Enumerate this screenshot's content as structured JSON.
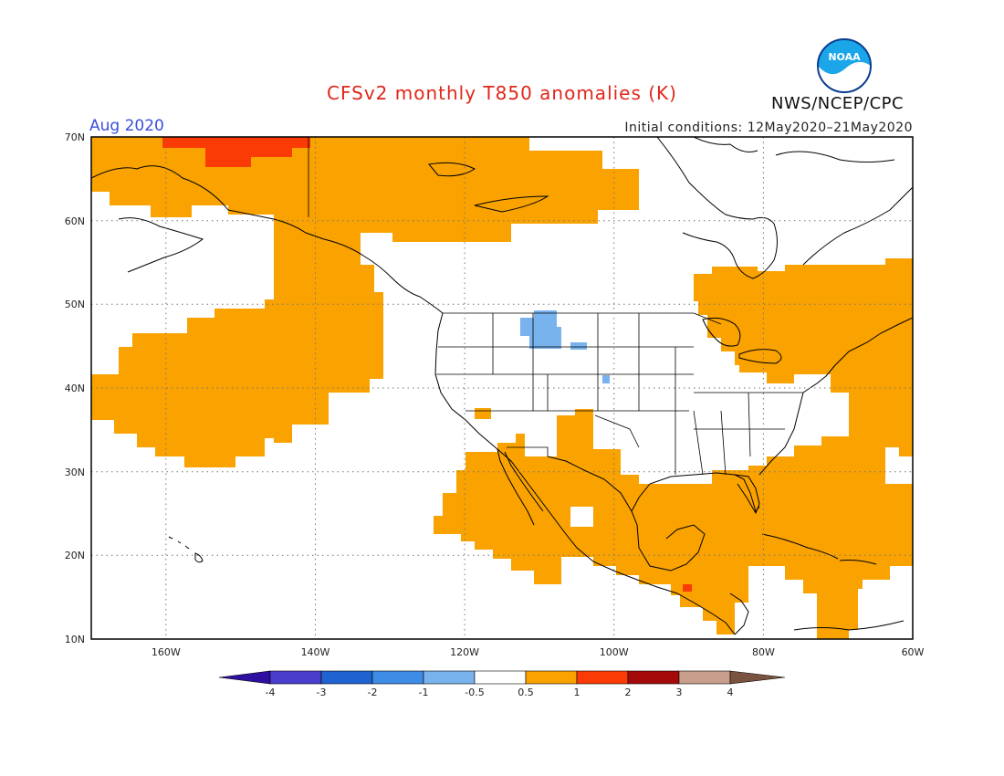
{
  "header": {
    "title": "CFSv2 monthly T850 anomalies (K)",
    "month": "Aug 2020",
    "initial_conditions": "Initial conditions: 12May2020–21May2020",
    "agency": "NWS/NCEP/CPC",
    "logo_text": "NOAA"
  },
  "map": {
    "lat_labels": [
      "70N",
      "60N",
      "50N",
      "40N",
      "30N",
      "20N",
      "10N"
    ],
    "lon_labels": [
      "160W",
      "140W",
      "120W",
      "100W",
      "80W",
      "60W"
    ],
    "colors": {
      "warm_0_5_1": "#f9a200",
      "warm_1_2": "#fb3b05",
      "cool_m1_m0_5": "#78b3ee",
      "coast": "#000000",
      "grid": "#777777"
    }
  },
  "colorbar": {
    "tick_labels": [
      "-4",
      "-3",
      "-2",
      "-1",
      "-0.5",
      "0.5",
      "1",
      "2",
      "3",
      "4"
    ],
    "colors": [
      "#2e0f9f",
      "#4b3dcc",
      "#1f63d0",
      "#3f8ce6",
      "#78b3ee",
      "#ffffff",
      "#f9a200",
      "#fb3b05",
      "#a50a0a",
      "#c79f8c",
      "#7a5340"
    ]
  }
}
